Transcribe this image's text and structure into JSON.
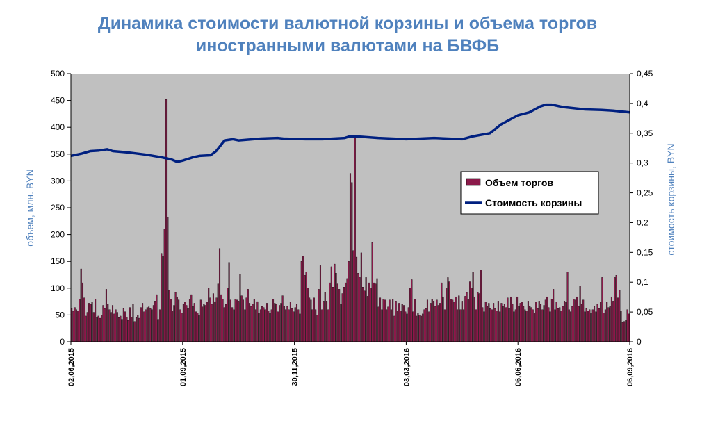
{
  "chart_data": {
    "type": "bar+line",
    "title_lines": [
      "Динамика стоимости валютной корзины и объема торгов",
      "иностранными валютами на БВФБ"
    ],
    "ylabel_left": "объем, млн. BYN",
    "ylabel_right": "стоимость корзины, BYN",
    "ylim_left": [
      0,
      500
    ],
    "ylim_right": [
      0,
      0.45
    ],
    "yticks_left": [
      "0",
      "50",
      "100",
      "150",
      "200",
      "250",
      "300",
      "350",
      "400",
      "450",
      "500"
    ],
    "yticks_right": [
      "0",
      "0,05",
      "0,1",
      "0,15",
      "0,2",
      "0,25",
      "0,3",
      "0,35",
      "0,4",
      "0,45"
    ],
    "x_tick_labels": [
      "02,06,2015",
      "01,09,2015",
      "30,11,2015",
      "03,03,2016",
      "06,06,2016",
      "06,09,2016"
    ],
    "legend": {
      "position": "right",
      "bar_label": "Объем торгов",
      "line_label": "Стоимость корзины"
    },
    "colors": {
      "bars": "#8b1a4a",
      "bar_border": "#000000",
      "line": "#002080",
      "plot_bg": "#c0c0c0",
      "accent": "#4f81bd"
    },
    "grid": false,
    "series": [
      {
        "name": "Объем торгов",
        "axis": "left",
        "kind": "bar",
        "values": [
          62,
          57,
          64,
          60,
          58,
          80,
          136,
          110,
          82,
          48,
          55,
          72,
          70,
          74,
          55,
          80,
          45,
          48,
          44,
          50,
          68,
          62,
          98,
          70,
          60,
          55,
          68,
          52,
          60,
          55,
          45,
          48,
          42,
          62,
          56,
          46,
          40,
          64,
          46,
          70,
          38,
          45,
          50,
          44,
          64,
          72,
          56,
          60,
          64,
          65,
          62,
          60,
          68,
          76,
          88,
          42,
          60,
          165,
          160,
          210,
          452,
          232,
          96,
          80,
          58,
          68,
          92,
          84,
          78,
          60,
          54,
          70,
          74,
          68,
          62,
          80,
          88,
          66,
          72,
          56,
          54,
          50,
          78,
          65,
          70,
          68,
          74,
          100,
          82,
          70,
          90,
          75,
          82,
          108,
          174,
          88,
          80,
          64,
          70,
          100,
          148,
          78,
          64,
          60,
          80,
          78,
          76,
          126,
          86,
          78,
          60,
          82,
          98,
          72,
          66,
          70,
          80,
          60,
          75,
          54,
          60,
          66,
          64,
          60,
          72,
          58,
          54,
          60,
          80,
          72,
          70,
          56,
          68,
          72,
          86,
          66,
          60,
          66,
          60,
          74,
          62,
          56,
          64,
          70,
          60,
          52,
          150,
          160,
          124,
          130,
          100,
          82,
          78,
          60,
          82,
          60,
          50,
          98,
          142,
          60,
          76,
          92,
          76,
          60,
          110,
          140,
          102,
          145,
          128,
          108,
          98,
          70,
          90,
          102,
          110,
          118,
          150,
          314,
          297,
          170,
          380,
          158,
          128,
          120,
          166,
          102,
          95,
          120,
          85,
          110,
          100,
          185,
          110,
          108,
          118,
          65,
          82,
          60,
          80,
          78,
          60,
          65,
          78,
          60,
          80,
          48,
          76,
          58,
          72,
          58,
          70,
          68,
          56,
          52,
          64,
          100,
          116,
          56,
          80,
          48,
          54,
          50,
          48,
          52,
          60,
          62,
          78,
          56,
          72,
          80,
          76,
          66,
          78,
          68,
          72,
          110,
          84,
          60,
          100,
          120,
          112,
          80,
          78,
          74,
          84,
          60,
          86,
          60,
          76,
          60,
          85,
          92,
          80,
          112,
          100,
          130,
          84,
          60,
          92,
          90,
          134,
          64,
          56,
          74,
          66,
          72,
          62,
          60,
          72,
          62,
          58,
          76,
          56,
          72,
          66,
          70,
          64,
          82,
          62,
          84,
          70,
          56,
          60,
          84,
          66,
          72,
          74,
          66,
          60,
          58,
          76,
          66,
          64,
          60,
          54,
          74,
          62,
          76,
          70,
          60,
          68,
          78,
          84,
          64,
          56,
          80,
          98,
          60,
          74,
          62,
          64,
          58,
          66,
          76,
          74,
          130,
          60,
          56,
          66,
          80,
          78,
          84,
          66,
          104,
          70,
          78,
          56,
          62,
          58,
          60,
          54,
          60,
          66,
          56,
          70,
          62,
          74,
          120,
          54,
          60,
          74,
          64,
          66,
          84,
          76,
          120,
          124,
          82,
          96,
          58,
          36,
          38,
          40,
          60,
          52
        ]
      },
      {
        "name": "Стоимость корзины",
        "axis": "right",
        "kind": "line",
        "x_rel": [
          0,
          0.02,
          0.035,
          0.05,
          0.065,
          0.075,
          0.1,
          0.135,
          0.16,
          0.18,
          0.19,
          0.2,
          0.22,
          0.23,
          0.25,
          0.26,
          0.275,
          0.29,
          0.3,
          0.34,
          0.37,
          0.38,
          0.42,
          0.45,
          0.49,
          0.5,
          0.52,
          0.55,
          0.6,
          0.65,
          0.7,
          0.72,
          0.75,
          0.77,
          0.8,
          0.82,
          0.84,
          0.85,
          0.86,
          0.88,
          0.9,
          0.92,
          0.95,
          0.97,
          1.0
        ],
        "y": [
          0.312,
          0.316,
          0.32,
          0.321,
          0.323,
          0.32,
          0.318,
          0.314,
          0.31,
          0.306,
          0.302,
          0.304,
          0.31,
          0.312,
          0.313,
          0.32,
          0.338,
          0.34,
          0.338,
          0.341,
          0.342,
          0.341,
          0.34,
          0.34,
          0.342,
          0.345,
          0.344,
          0.342,
          0.34,
          0.342,
          0.34,
          0.345,
          0.35,
          0.365,
          0.38,
          0.385,
          0.395,
          0.398,
          0.398,
          0.394,
          0.392,
          0.39,
          0.389,
          0.388,
          0.385
        ]
      }
    ]
  }
}
